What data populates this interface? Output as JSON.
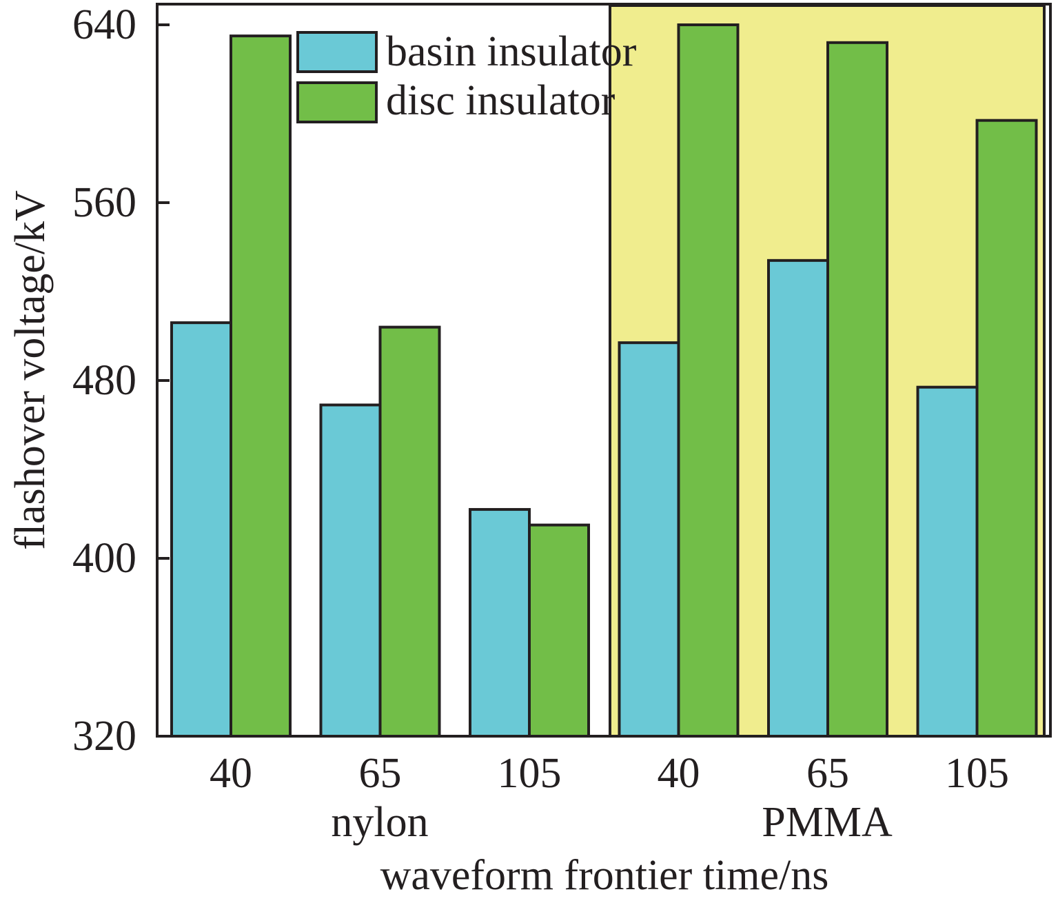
{
  "chart_data": {
    "type": "bar",
    "title": "",
    "xlabel": "waveform frontier time/ns",
    "ylabel": "flashover voltage/kV",
    "ylim": [
      320,
      640
    ],
    "yticks": [
      "320",
      "400",
      "480",
      "560",
      "640"
    ],
    "groups": [
      {
        "name": "nylon",
        "categories": [
          "40",
          "65",
          "105"
        ]
      },
      {
        "name": "PMMA",
        "categories": [
          "40",
          "65",
          "105"
        ],
        "highlight_color": "#f0ed8e"
      }
    ],
    "series": [
      {
        "name": "basin insulator",
        "color": "#6ac9d6",
        "values": [
          506,
          469,
          422,
          497,
          534,
          477
        ]
      },
      {
        "name": "disc insulator",
        "color": "#72be48",
        "values": [
          635,
          504,
          415,
          640,
          632,
          597
        ]
      }
    ],
    "legend_position": "top-center",
    "grid": false
  }
}
